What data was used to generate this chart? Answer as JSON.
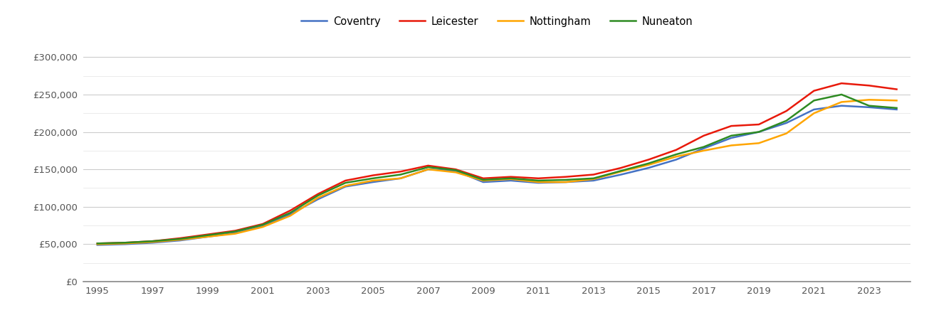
{
  "years": [
    1995,
    1996,
    1997,
    1998,
    1999,
    2000,
    2001,
    2002,
    2003,
    2004,
    2005,
    2006,
    2007,
    2008,
    2009,
    2010,
    2011,
    2012,
    2013,
    2014,
    2015,
    2016,
    2017,
    2018,
    2019,
    2020,
    2021,
    2022,
    2023,
    2024
  ],
  "coventry": [
    49000,
    50000,
    52000,
    55000,
    60000,
    65000,
    74000,
    90000,
    110000,
    127000,
    133000,
    138000,
    150000,
    148000,
    133000,
    135000,
    132000,
    133000,
    135000,
    143000,
    152000,
    163000,
    178000,
    192000,
    200000,
    212000,
    230000,
    235000,
    233000,
    230000
  ],
  "leicester": [
    51000,
    52000,
    54000,
    58000,
    63000,
    68000,
    77000,
    95000,
    117000,
    135000,
    142000,
    147000,
    155000,
    150000,
    138000,
    140000,
    138000,
    140000,
    143000,
    152000,
    163000,
    176000,
    195000,
    208000,
    210000,
    228000,
    255000,
    265000,
    262000,
    257000
  ],
  "nottingham": [
    50000,
    51000,
    53000,
    56000,
    60000,
    64000,
    73000,
    88000,
    112000,
    128000,
    135000,
    138000,
    150000,
    146000,
    135000,
    137000,
    133000,
    133000,
    137000,
    147000,
    156000,
    167000,
    175000,
    182000,
    185000,
    198000,
    225000,
    240000,
    243000,
    242000
  ],
  "nuneaton": [
    51000,
    52000,
    54000,
    57000,
    62000,
    67000,
    76000,
    92000,
    115000,
    132000,
    138000,
    143000,
    153000,
    149000,
    136000,
    138000,
    135000,
    136000,
    138000,
    148000,
    158000,
    170000,
    180000,
    195000,
    200000,
    215000,
    242000,
    250000,
    235000,
    232000
  ],
  "coventry_color": "#4472C4",
  "leicester_color": "#E8190A",
  "nottingham_color": "#FFA500",
  "nuneaton_color": "#2E8B22",
  "background_color": "#ffffff",
  "major_grid_color": "#cccccc",
  "minor_grid_color": "#e8e8e8",
  "yticks_major": [
    0,
    50000,
    100000,
    150000,
    200000,
    250000,
    300000
  ],
  "yticks_minor": [
    25000,
    75000,
    125000,
    175000,
    225000,
    275000
  ],
  "ylim": [
    0,
    325000
  ],
  "xlim_min": 1994.5,
  "xlim_max": 2024.5,
  "linewidth": 1.8
}
